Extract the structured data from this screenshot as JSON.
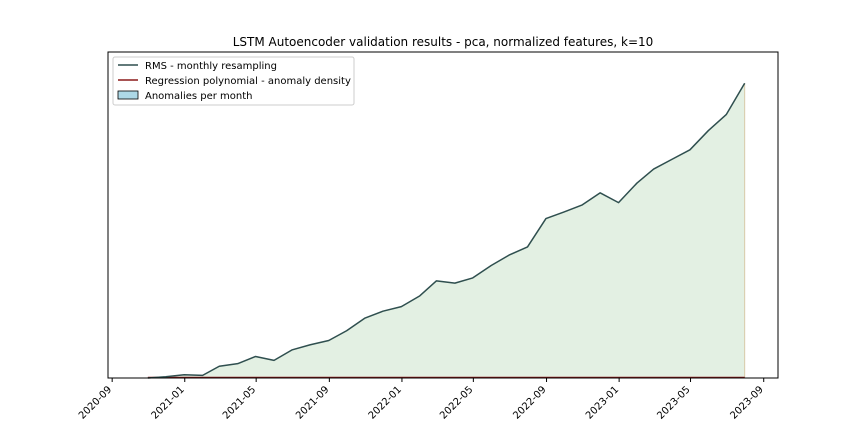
{
  "chart_data": {
    "type": "area",
    "title": "LSTM Autoencoder validation results - pca, normalized features, k=10",
    "xlabel": "",
    "ylabel": "",
    "x_ticks": [
      "2020-09",
      "2021-01",
      "2021-05",
      "2021-09",
      "2022-01",
      "2022-05",
      "2022-09",
      "2023-01",
      "2023-05",
      "2023-09"
    ],
    "xlim": [
      "2020-08-25",
      "2023-09-25"
    ],
    "y_ticks_shown": false,
    "ylim": [
      0,
      1
    ],
    "legend_position": "top-left",
    "legend": [
      "RMS - monthly resampling",
      "Regression polynomial - anomaly density",
      "Anomalies per month"
    ],
    "series": [
      {
        "name": "RMS - monthly resampling",
        "kind": "line",
        "color": "#2f4f4f",
        "x": [
          "2020-10-31",
          "2020-11-30",
          "2020-12-31",
          "2021-01-31",
          "2021-02-28",
          "2021-03-31",
          "2021-04-30",
          "2021-05-31",
          "2021-06-30",
          "2021-07-31",
          "2021-08-31",
          "2021-09-30",
          "2021-10-31",
          "2021-11-30",
          "2021-12-31",
          "2022-01-31",
          "2022-02-28",
          "2022-03-31",
          "2022-04-30",
          "2022-05-31",
          "2022-06-30",
          "2022-07-31",
          "2022-08-31",
          "2022-09-30",
          "2022-10-31",
          "2022-11-30",
          "2022-12-31",
          "2023-01-31",
          "2023-02-28",
          "2023-03-31",
          "2023-04-30",
          "2023-05-31",
          "2023-06-30",
          "2023-07-31"
        ],
        "y": [
          0.0,
          0.004,
          0.01,
          0.008,
          0.036,
          0.044,
          0.066,
          0.054,
          0.086,
          0.102,
          0.115,
          0.145,
          0.184,
          0.205,
          0.219,
          0.252,
          0.298,
          0.291,
          0.307,
          0.345,
          0.377,
          0.402,
          0.489,
          0.509,
          0.531,
          0.568,
          0.538,
          0.598,
          0.641,
          0.671,
          0.7,
          0.759,
          0.808,
          0.904
        ]
      },
      {
        "name": "Regression polynomial - anomaly density",
        "kind": "line",
        "color": "#8b1a1a",
        "x": [
          "2020-10-31",
          "2023-07-31"
        ],
        "y": [
          0,
          0
        ]
      },
      {
        "name": "Anomalies per month",
        "kind": "bar",
        "color": "#add8e6",
        "x": [],
        "y": []
      }
    ],
    "fill_under_rms_color": "#e3f0e3"
  }
}
